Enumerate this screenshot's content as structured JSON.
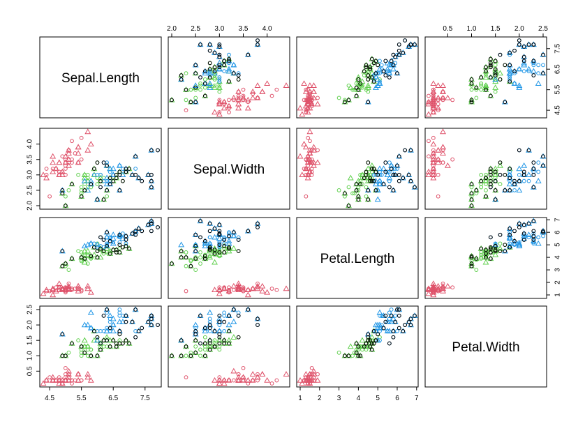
{
  "chart_data": {
    "type": "scatter-matrix",
    "variables": [
      "Sepal.Length",
      "Sepal.Width",
      "Petal.Length",
      "Petal.Width"
    ],
    "ranges": [
      [
        4.3,
        7.9
      ],
      [
        2.0,
        4.4
      ],
      [
        1.0,
        6.9
      ],
      [
        0.1,
        2.5
      ]
    ],
    "ticks": [
      [
        "4.5",
        "5.5",
        "6.5",
        "7.5"
      ],
      [
        "2.0",
        "2.5",
        "3.0",
        "3.5",
        "4.0"
      ],
      [
        "1",
        "2",
        "3",
        "4",
        "5",
        "6",
        "7"
      ],
      [
        "0.5",
        "1.0",
        "1.5",
        "2.0",
        "2.5"
      ]
    ],
    "colors": [
      "#DF536B",
      "#61D04F",
      "#2297E6",
      "#000000"
    ],
    "series": [
      {
        "color": "#DF536B",
        "marker": "triangle",
        "points": [
          [
            5.1,
            3.5,
            1.4,
            0.2
          ],
          [
            4.9,
            3.0,
            1.4,
            0.2
          ],
          [
            4.7,
            3.2,
            1.3,
            0.2
          ],
          [
            4.6,
            3.1,
            1.5,
            0.2
          ],
          [
            5.0,
            3.6,
            1.4,
            0.2
          ],
          [
            5.4,
            3.9,
            1.7,
            0.4
          ],
          [
            4.6,
            3.4,
            1.4,
            0.3
          ],
          [
            5.0,
            3.4,
            1.5,
            0.2
          ],
          [
            4.4,
            2.9,
            1.4,
            0.2
          ],
          [
            4.9,
            3.1,
            1.5,
            0.1
          ],
          [
            5.4,
            3.7,
            1.5,
            0.2
          ],
          [
            4.8,
            3.4,
            1.6,
            0.2
          ],
          [
            4.8,
            3.0,
            1.4,
            0.1
          ],
          [
            4.3,
            3.0,
            1.1,
            0.1
          ],
          [
            5.8,
            4.0,
            1.2,
            0.2
          ],
          [
            5.7,
            4.4,
            1.5,
            0.4
          ],
          [
            5.4,
            3.9,
            1.3,
            0.4
          ],
          [
            5.1,
            3.5,
            1.4,
            0.3
          ],
          [
            5.7,
            3.8,
            1.7,
            0.3
          ],
          [
            5.1,
            3.8,
            1.5,
            0.3
          ],
          [
            5.4,
            3.4,
            1.7,
            0.2
          ],
          [
            5.1,
            3.7,
            1.5,
            0.4
          ],
          [
            4.6,
            3.6,
            1.0,
            0.2
          ],
          [
            5.1,
            3.3,
            1.7,
            0.5
          ],
          [
            4.8,
            3.4,
            1.9,
            0.2
          ]
        ]
      },
      {
        "color": "#DF536B",
        "marker": "circle",
        "points": [
          [
            5.0,
            3.0,
            1.6,
            0.2
          ],
          [
            5.0,
            3.4,
            1.6,
            0.4
          ],
          [
            5.2,
            3.5,
            1.5,
            0.2
          ],
          [
            5.2,
            3.4,
            1.4,
            0.2
          ],
          [
            4.7,
            3.2,
            1.6,
            0.2
          ],
          [
            4.8,
            3.1,
            1.6,
            0.2
          ],
          [
            5.4,
            3.4,
            1.5,
            0.4
          ],
          [
            5.2,
            4.1,
            1.5,
            0.1
          ],
          [
            5.5,
            4.2,
            1.4,
            0.2
          ],
          [
            4.9,
            3.1,
            1.5,
            0.2
          ],
          [
            5.0,
            3.2,
            1.2,
            0.2
          ],
          [
            5.5,
            3.5,
            1.3,
            0.2
          ],
          [
            4.9,
            3.6,
            1.4,
            0.1
          ],
          [
            4.4,
            3.0,
            1.3,
            0.2
          ],
          [
            5.1,
            3.4,
            1.5,
            0.2
          ],
          [
            5.0,
            3.5,
            1.3,
            0.3
          ],
          [
            4.5,
            2.3,
            1.3,
            0.3
          ],
          [
            4.4,
            3.2,
            1.3,
            0.2
          ],
          [
            5.0,
            3.5,
            1.6,
            0.6
          ],
          [
            5.1,
            3.8,
            1.9,
            0.4
          ],
          [
            4.8,
            3.0,
            1.4,
            0.3
          ],
          [
            5.1,
            3.8,
            1.6,
            0.2
          ],
          [
            4.6,
            3.2,
            1.4,
            0.2
          ],
          [
            5.3,
            3.7,
            1.5,
            0.2
          ],
          [
            5.0,
            3.3,
            1.4,
            0.2
          ]
        ]
      },
      {
        "color": "#61D04F",
        "marker": "triangle",
        "points": [
          [
            7.0,
            3.2,
            4.7,
            1.4
          ],
          [
            6.4,
            3.2,
            4.5,
            1.5
          ],
          [
            6.9,
            3.1,
            4.9,
            1.5
          ],
          [
            5.5,
            2.3,
            4.0,
            1.3
          ],
          [
            6.5,
            2.8,
            4.6,
            1.5
          ],
          [
            5.7,
            2.8,
            4.5,
            1.3
          ],
          [
            6.3,
            3.3,
            4.7,
            1.6
          ],
          [
            4.9,
            2.4,
            3.3,
            1.0
          ],
          [
            6.6,
            2.9,
            4.6,
            1.3
          ],
          [
            5.2,
            2.7,
            3.9,
            1.4
          ],
          [
            5.0,
            2.0,
            3.5,
            1.0
          ],
          [
            5.9,
            3.0,
            4.2,
            1.5
          ],
          [
            6.0,
            2.2,
            4.0,
            1.0
          ],
          [
            6.1,
            2.9,
            4.7,
            1.4
          ],
          [
            5.6,
            2.9,
            3.6,
            1.3
          ],
          [
            6.7,
            3.1,
            4.4,
            1.4
          ],
          [
            5.6,
            3.0,
            4.5,
            1.5
          ],
          [
            5.8,
            2.7,
            4.1,
            1.0
          ],
          [
            6.2,
            2.2,
            4.5,
            1.5
          ],
          [
            5.6,
            2.5,
            3.9,
            1.1
          ],
          [
            5.9,
            3.2,
            4.8,
            1.8
          ],
          [
            6.1,
            2.8,
            4.0,
            1.3
          ],
          [
            6.3,
            2.5,
            4.9,
            1.5
          ],
          [
            6.1,
            2.8,
            4.7,
            1.2
          ],
          [
            6.4,
            2.9,
            4.3,
            1.3
          ]
        ]
      },
      {
        "color": "#61D04F",
        "marker": "circle",
        "points": [
          [
            6.6,
            3.0,
            4.4,
            1.4
          ],
          [
            6.8,
            2.8,
            4.8,
            1.4
          ],
          [
            6.7,
            3.0,
            5.0,
            1.7
          ],
          [
            6.0,
            2.9,
            4.5,
            1.5
          ],
          [
            5.7,
            2.6,
            3.5,
            1.0
          ],
          [
            5.5,
            2.4,
            3.8,
            1.1
          ],
          [
            5.5,
            2.4,
            3.7,
            1.0
          ],
          [
            5.8,
            2.7,
            3.9,
            1.2
          ],
          [
            6.0,
            2.7,
            5.1,
            1.6
          ],
          [
            5.4,
            3.0,
            4.5,
            1.5
          ],
          [
            6.0,
            3.4,
            4.5,
            1.6
          ],
          [
            6.7,
            3.1,
            4.7,
            1.5
          ],
          [
            6.3,
            2.3,
            4.4,
            1.3
          ],
          [
            5.6,
            3.0,
            4.1,
            1.3
          ],
          [
            5.5,
            2.5,
            4.0,
            1.3
          ],
          [
            5.5,
            2.6,
            4.4,
            1.2
          ],
          [
            6.1,
            3.0,
            4.6,
            1.4
          ],
          [
            5.8,
            2.6,
            4.0,
            1.2
          ],
          [
            5.0,
            2.3,
            3.3,
            1.0
          ],
          [
            5.6,
            2.7,
            4.2,
            1.3
          ],
          [
            5.7,
            3.0,
            4.2,
            1.2
          ],
          [
            5.7,
            2.9,
            4.2,
            1.3
          ],
          [
            6.2,
            2.9,
            4.3,
            1.3
          ],
          [
            5.1,
            2.5,
            3.0,
            1.1
          ],
          [
            5.7,
            2.8,
            4.1,
            1.3
          ]
        ]
      },
      {
        "color": "#2297E6",
        "marker": "triangle",
        "points": [
          [
            6.3,
            3.3,
            6.0,
            2.5
          ],
          [
            5.8,
            2.7,
            5.1,
            1.9
          ],
          [
            7.1,
            3.0,
            5.9,
            2.1
          ],
          [
            6.3,
            2.9,
            5.6,
            1.8
          ],
          [
            6.5,
            3.0,
            5.8,
            2.2
          ],
          [
            7.6,
            3.0,
            6.6,
            2.1
          ],
          [
            4.9,
            2.5,
            4.5,
            1.7
          ],
          [
            7.3,
            2.9,
            6.3,
            1.8
          ],
          [
            6.7,
            2.5,
            5.8,
            1.8
          ],
          [
            7.2,
            3.6,
            6.1,
            2.5
          ],
          [
            6.5,
            3.2,
            5.1,
            2.0
          ],
          [
            6.4,
            2.7,
            5.3,
            1.9
          ],
          [
            6.8,
            3.0,
            5.5,
            2.1
          ],
          [
            5.7,
            2.5,
            5.0,
            2.0
          ],
          [
            5.8,
            2.8,
            5.1,
            2.4
          ],
          [
            6.4,
            3.2,
            5.3,
            2.3
          ],
          [
            6.5,
            3.0,
            5.5,
            1.8
          ],
          [
            7.7,
            3.8,
            6.7,
            2.2
          ],
          [
            7.7,
            2.6,
            6.9,
            2.3
          ],
          [
            6.0,
            2.2,
            5.0,
            1.5
          ],
          [
            6.9,
            3.2,
            5.7,
            2.3
          ],
          [
            5.6,
            2.8,
            4.9,
            2.0
          ],
          [
            7.7,
            2.8,
            6.7,
            2.0
          ],
          [
            6.3,
            2.7,
            4.9,
            1.8
          ],
          [
            6.7,
            3.3,
            5.7,
            2.1
          ]
        ]
      },
      {
        "color": "#2297E6",
        "marker": "circle",
        "points": [
          [
            7.2,
            3.2,
            6.0,
            1.8
          ],
          [
            6.2,
            2.8,
            4.8,
            1.8
          ],
          [
            6.1,
            3.0,
            4.9,
            1.8
          ],
          [
            6.4,
            2.8,
            5.6,
            2.1
          ],
          [
            7.2,
            3.0,
            5.8,
            1.6
          ],
          [
            7.4,
            2.8,
            6.1,
            1.9
          ],
          [
            7.9,
            3.8,
            6.4,
            2.0
          ],
          [
            6.4,
            2.8,
            5.6,
            2.2
          ],
          [
            6.3,
            2.8,
            5.1,
            1.5
          ],
          [
            6.1,
            2.6,
            5.6,
            1.4
          ],
          [
            7.7,
            3.0,
            6.1,
            2.3
          ],
          [
            6.3,
            3.4,
            5.6,
            2.4
          ],
          [
            6.4,
            3.1,
            5.5,
            1.8
          ],
          [
            6.0,
            3.0,
            4.8,
            1.8
          ],
          [
            6.9,
            3.1,
            5.4,
            2.1
          ],
          [
            6.7,
            3.1,
            5.6,
            2.4
          ],
          [
            6.9,
            3.1,
            5.1,
            2.3
          ],
          [
            5.8,
            2.7,
            5.1,
            1.9
          ],
          [
            6.8,
            3.2,
            5.9,
            2.3
          ],
          [
            6.7,
            3.3,
            5.7,
            2.5
          ],
          [
            6.7,
            3.0,
            5.2,
            2.3
          ],
          [
            6.3,
            2.5,
            5.0,
            1.9
          ],
          [
            6.5,
            3.0,
            5.2,
            2.0
          ],
          [
            6.2,
            3.4,
            5.4,
            2.3
          ],
          [
            5.9,
            3.0,
            5.1,
            1.8
          ]
        ]
      },
      {
        "color": "#000000",
        "marker": "circle",
        "points": [
          [
            7.0,
            3.2,
            4.7,
            1.4
          ],
          [
            6.9,
            3.1,
            4.9,
            1.5
          ],
          [
            6.5,
            2.8,
            4.6,
            1.5
          ],
          [
            4.9,
            2.4,
            3.3,
            1.0
          ],
          [
            5.0,
            2.0,
            3.5,
            1.0
          ],
          [
            6.0,
            2.2,
            4.0,
            1.0
          ],
          [
            6.2,
            2.2,
            4.5,
            1.5
          ],
          [
            6.3,
            2.5,
            4.9,
            1.5
          ],
          [
            6.6,
            2.9,
            4.6,
            1.3
          ],
          [
            6.7,
            3.1,
            4.4,
            1.4
          ],
          [
            5.2,
            2.7,
            3.9,
            1.4
          ],
          [
            6.1,
            2.8,
            4.7,
            1.2
          ],
          [
            6.4,
            2.9,
            4.3,
            1.3
          ],
          [
            6.6,
            3.0,
            4.4,
            1.4
          ],
          [
            6.8,
            2.8,
            4.8,
            1.4
          ],
          [
            6.7,
            3.0,
            5.0,
            1.7
          ],
          [
            7.1,
            3.0,
            5.9,
            2.1
          ],
          [
            7.6,
            3.0,
            6.6,
            2.1
          ],
          [
            7.3,
            2.9,
            6.3,
            1.8
          ],
          [
            7.2,
            3.6,
            6.1,
            2.5
          ],
          [
            7.7,
            3.8,
            6.7,
            2.2
          ],
          [
            7.7,
            2.6,
            6.9,
            2.3
          ],
          [
            6.9,
            3.2,
            5.7,
            2.3
          ],
          [
            7.7,
            2.8,
            6.7,
            2.0
          ],
          [
            7.9,
            3.8,
            6.4,
            2.0
          ],
          [
            5.5,
            2.3,
            4.0,
            1.3
          ],
          [
            6.4,
            2.7,
            5.3,
            1.9
          ],
          [
            6.3,
            3.3,
            6.0,
            2.5
          ],
          [
            7.2,
            3.0,
            5.8,
            1.6
          ],
          [
            7.4,
            2.8,
            6.1,
            1.9
          ],
          [
            6.1,
            2.6,
            5.6,
            1.4
          ],
          [
            7.7,
            3.0,
            6.1,
            2.3
          ],
          [
            4.9,
            2.5,
            4.5,
            1.7
          ],
          [
            5.8,
            2.7,
            4.1,
            1.0
          ],
          [
            6.0,
            3.4,
            4.5,
            1.6
          ],
          [
            5.6,
            2.5,
            3.9,
            1.1
          ],
          [
            6.9,
            3.1,
            5.4,
            2.1
          ],
          [
            6.7,
            2.5,
            5.8,
            1.8
          ],
          [
            5.9,
            3.2,
            4.8,
            1.8
          ],
          [
            6.2,
            3.4,
            5.4,
            2.3
          ]
        ]
      }
    ]
  }
}
